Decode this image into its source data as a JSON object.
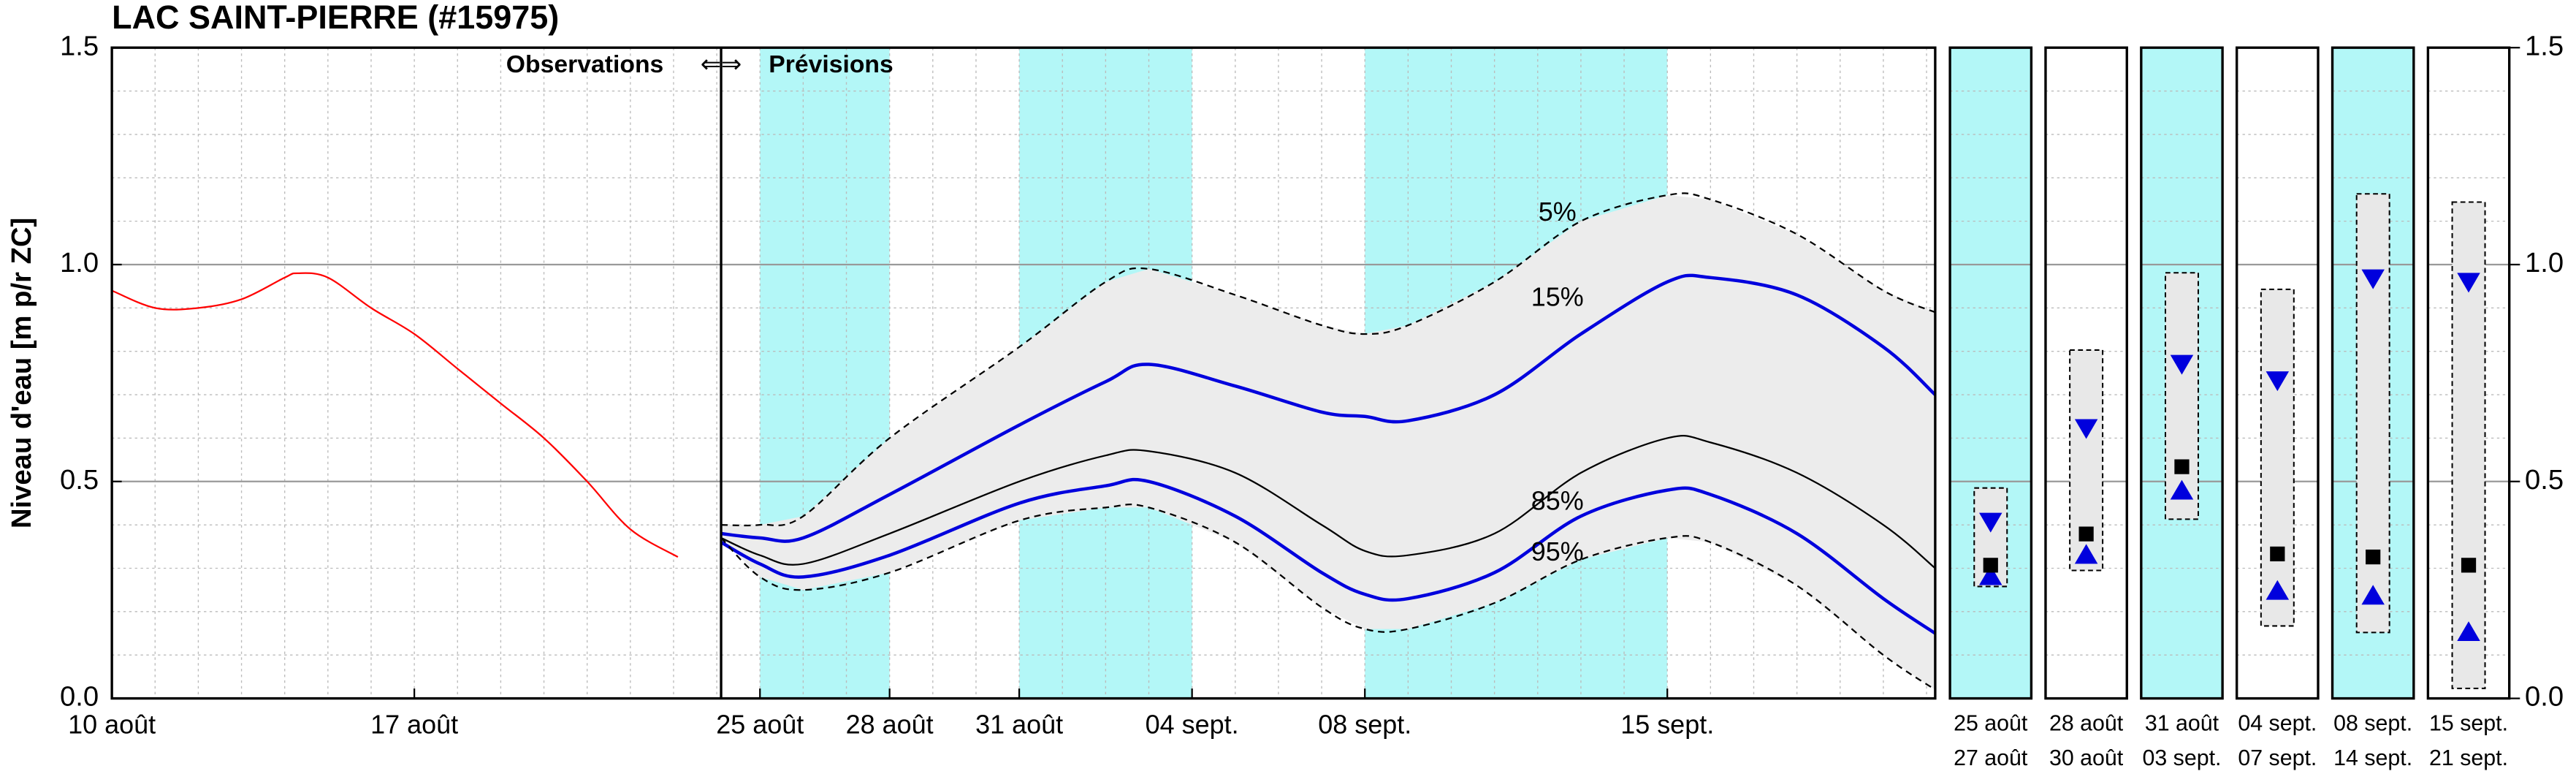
{
  "chart_data": [
    {
      "type": "line",
      "title": "LAC SAINT-PIERRE (#15975)",
      "ylabel": "Niveau d'eau [m p/r ZC]",
      "observations_label": "Observations",
      "arrows": "⇐⇒",
      "forecast_label": "Prévisions",
      "xlim": [
        0,
        42.2
      ],
      "xticks": [
        {
          "value": 0,
          "label": "10 août"
        },
        {
          "value": 7,
          "label": "17 août"
        },
        {
          "value": 15,
          "label": "25 août"
        },
        {
          "value": 18,
          "label": "28 août"
        },
        {
          "value": 21,
          "label": "31 août"
        },
        {
          "value": 25,
          "label": "04 sept."
        },
        {
          "value": 29,
          "label": "08 sept."
        },
        {
          "value": 36,
          "label": "15 sept."
        }
      ],
      "ylim": [
        0,
        1.5
      ],
      "yticks": [
        {
          "value": 0,
          "label": "0.0"
        },
        {
          "value": 0.5,
          "label": "0.5"
        },
        {
          "value": 1,
          "label": "1.0"
        },
        {
          "value": 1.5,
          "label": "1.5"
        }
      ],
      "grid": true,
      "divider_x": 14.1,
      "shaded_periods": [
        [
          15,
          18
        ],
        [
          21,
          25
        ],
        [
          29,
          36
        ]
      ],
      "shade_color": "#b3f7f7",
      "band_color": "#ececec",
      "series": [
        {
          "color": "#ff0000",
          "x": [
            0,
            1,
            2,
            3,
            4,
            4.3,
            5,
            6,
            7,
            8,
            9,
            10,
            11,
            12,
            13.1
          ],
          "values": [
            0.94,
            0.9,
            0.9,
            0.92,
            0.97,
            0.98,
            0.97,
            0.9,
            0.84,
            0.76,
            0.68,
            0.6,
            0.5,
            0.39,
            0.326
          ]
        },
        {
          "name": "5%",
          "color": "#000000",
          "dash": true,
          "x": [
            14.1,
            15,
            16,
            18,
            21,
            23,
            24,
            26,
            28,
            29,
            30,
            32,
            34,
            36,
            37,
            39,
            41,
            42.2
          ],
          "values": [
            0.4,
            0.4,
            0.42,
            0.6,
            0.81,
            0.96,
            0.99,
            0.93,
            0.86,
            0.84,
            0.86,
            0.96,
            1.1,
            1.16,
            1.15,
            1.07,
            0.94,
            0.89
          ]
        },
        {
          "name": "15%",
          "color": "#0000dd",
          "x": [
            14.1,
            15,
            16,
            18,
            21,
            23,
            24,
            26,
            28,
            29,
            30,
            32,
            34,
            36,
            37,
            39,
            41,
            42.2
          ],
          "values": [
            0.38,
            0.37,
            0.37,
            0.47,
            0.63,
            0.73,
            0.77,
            0.72,
            0.66,
            0.65,
            0.64,
            0.7,
            0.84,
            0.96,
            0.97,
            0.93,
            0.81,
            0.7
          ]
        },
        {
          "color": "#000000",
          "x": [
            14.1,
            15,
            16,
            18,
            21,
            23,
            24,
            26,
            28,
            29,
            30,
            32,
            34,
            36,
            37,
            39,
            41,
            42.2
          ],
          "values": [
            0.37,
            0.33,
            0.31,
            0.38,
            0.5,
            0.56,
            0.57,
            0.52,
            0.4,
            0.34,
            0.33,
            0.38,
            0.52,
            0.6,
            0.59,
            0.52,
            0.4,
            0.3
          ]
        },
        {
          "name": "85%",
          "color": "#0000dd",
          "x": [
            14.1,
            15,
            16,
            18,
            21,
            23,
            24,
            26,
            28,
            29,
            30,
            32,
            34,
            36,
            37,
            39,
            41,
            42.2
          ],
          "values": [
            0.36,
            0.31,
            0.28,
            0.33,
            0.45,
            0.49,
            0.5,
            0.42,
            0.29,
            0.24,
            0.23,
            0.29,
            0.42,
            0.48,
            0.47,
            0.38,
            0.23,
            0.15
          ]
        },
        {
          "name": "95%",
          "color": "#000000",
          "dash": true,
          "x": [
            14.1,
            15,
            16,
            18,
            21,
            23,
            24,
            26,
            28,
            29,
            30,
            32,
            34,
            36,
            37,
            39,
            41,
            42.2
          ],
          "values": [
            0.37,
            0.28,
            0.25,
            0.29,
            0.41,
            0.44,
            0.44,
            0.36,
            0.21,
            0.16,
            0.16,
            0.22,
            0.32,
            0.37,
            0.36,
            0.26,
            0.1,
            0.02
          ]
        }
      ]
    },
    {
      "type": "box",
      "ylim": [
        0,
        1.5
      ],
      "yticks": [
        {
          "value": 0,
          "label": "0.0"
        },
        {
          "value": 0.5,
          "label": "0.5"
        },
        {
          "value": 1,
          "label": "1.0"
        },
        {
          "value": 1.5,
          "label": "1.5"
        }
      ],
      "shade_color": "#b3f7f7",
      "marker_color": "#0000dd",
      "periods": [
        {
          "start": "25 août",
          "end": "27 août",
          "shaded": true,
          "high": 0.485,
          "low": 0.258,
          "p15": 0.405,
          "median": 0.307,
          "p85": 0.284
        },
        {
          "start": "28 août",
          "end": "30 août",
          "shaded": false,
          "high": 0.803,
          "low": 0.295,
          "p15": 0.621,
          "median": 0.379,
          "p85": 0.333
        },
        {
          "start": "31 août",
          "end": "03 sept.",
          "shaded": true,
          "high": 0.981,
          "low": 0.413,
          "p15": 0.769,
          "median": 0.534,
          "p85": 0.481
        },
        {
          "start": "04 sept.",
          "end": "07 sept.",
          "shaded": false,
          "high": 0.943,
          "low": 0.167,
          "p15": 0.731,
          "median": 0.333,
          "p85": 0.25
        },
        {
          "start": "08 sept.",
          "end": "14 sept.",
          "shaded": true,
          "high": 1.163,
          "low": 0.152,
          "p15": 0.966,
          "median": 0.326,
          "p85": 0.239
        },
        {
          "start": "15 sept.",
          "end": "21 sept.",
          "shaded": false,
          "high": 1.144,
          "low": 0.023,
          "p15": 0.958,
          "median": 0.307,
          "p85": 0.155
        }
      ]
    }
  ]
}
